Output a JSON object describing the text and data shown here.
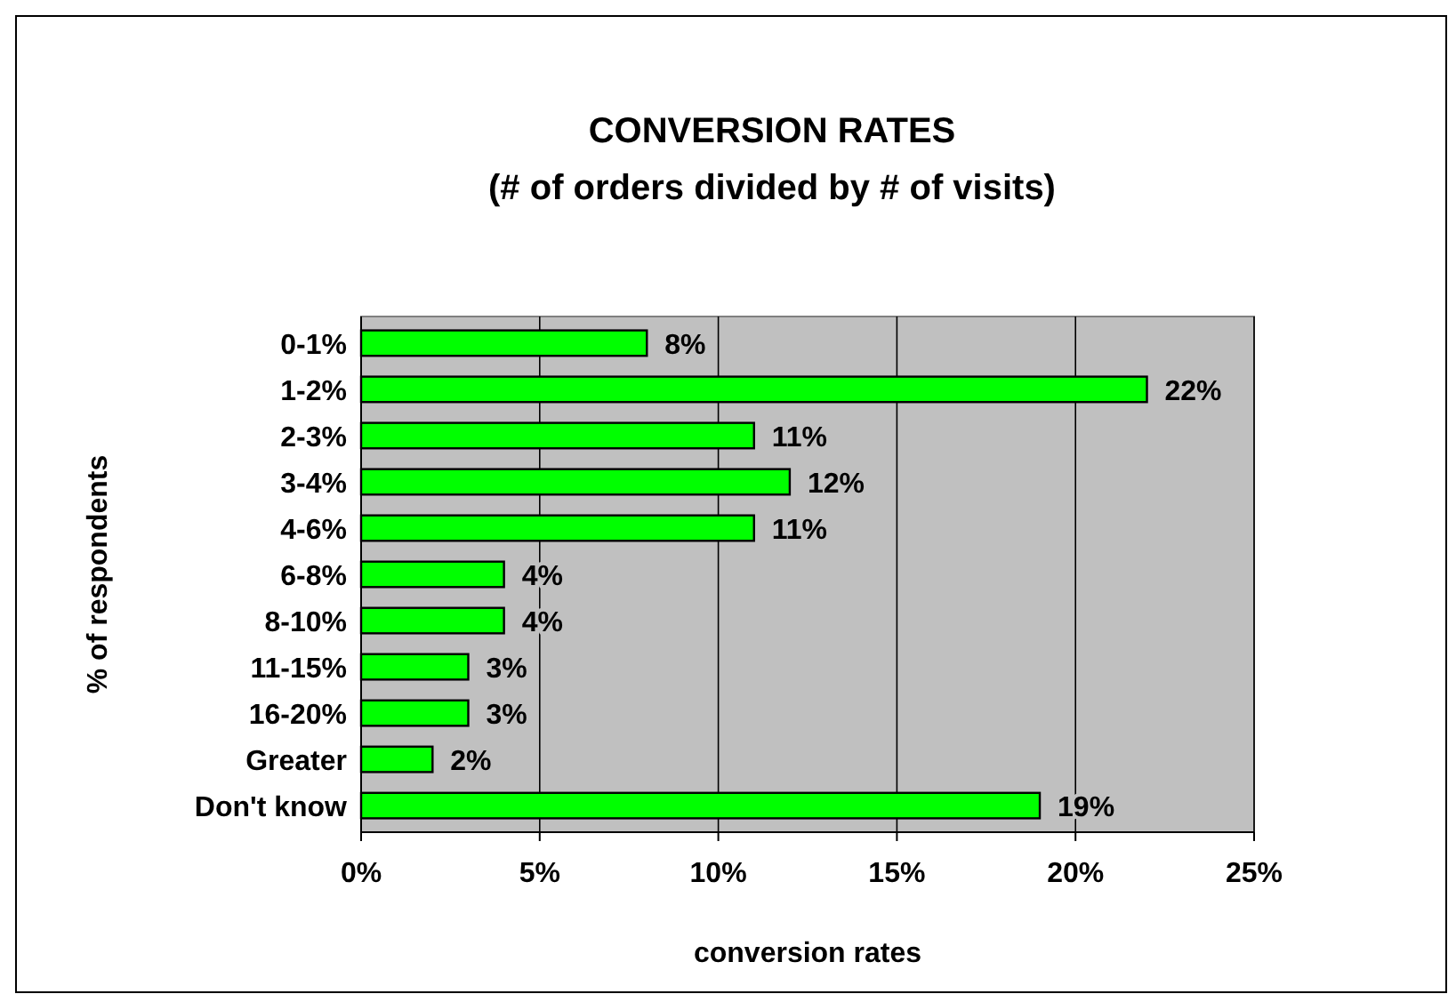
{
  "chart_data": {
    "type": "bar",
    "orientation": "horizontal",
    "title": "CONVERSION RATES",
    "subtitle": "(# of orders divided by # of visits)",
    "xlabel": "conversion rates",
    "ylabel": "% of respondents",
    "categories": [
      "0-1%",
      "1-2%",
      "2-3%",
      "3-4%",
      "4-6%",
      "6-8%",
      "8-10%",
      "11-15%",
      "16-20%",
      "Greater",
      "Don't know"
    ],
    "values": [
      8,
      22,
      11,
      12,
      11,
      4,
      4,
      3,
      3,
      2,
      19
    ],
    "value_labels": [
      "8%",
      "22%",
      "11%",
      "12%",
      "11%",
      "4%",
      "4%",
      "3%",
      "3%",
      "2%",
      "19%"
    ],
    "color": "#00ff00",
    "xlim": [
      0,
      25
    ],
    "xticks": [
      {
        "value": 0,
        "label": "0%"
      },
      {
        "value": 5,
        "label": "5%"
      },
      {
        "value": 10,
        "label": "10%"
      },
      {
        "value": 15,
        "label": "15%"
      },
      {
        "value": 20,
        "label": "20%"
      },
      {
        "value": 25,
        "label": "25%"
      }
    ],
    "grid": "x"
  }
}
